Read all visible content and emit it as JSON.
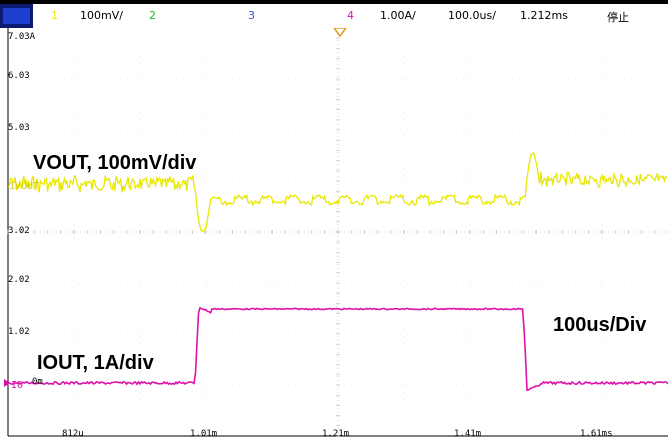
{
  "status_bar": {
    "ch1_number": "1",
    "ch1_scale": "100mV/",
    "ch2_number": "2",
    "ch3_number": "3",
    "ch4_number": "4",
    "ch4_scale": "1.00A/",
    "timebase": "100.0us/",
    "trigger_position": "1.212ms",
    "run_state": "停止",
    "colors": {
      "ch1": "#e8e800",
      "ch2": "#22bb22",
      "ch3": "#3355dd",
      "ch4": "#dd11aa"
    }
  },
  "y_scale_labels": [
    "7.03A",
    "6.03",
    "5.03",
    "3.02",
    "2.02",
    "1.02",
    "0m"
  ],
  "x_scale_labels": [
    "812u",
    "1.01m",
    "1.21m",
    "1.41m",
    "1.61ms"
  ],
  "channel_markers": {
    "vout": "1VOUT",
    "iout": "IO"
  },
  "annotations": {
    "vout": "VOUT, 100mV/div",
    "iout": "IOUT, 1A/div",
    "timebase": "100us/Div"
  },
  "icons": {
    "trigger_marker": "trigger-position-marker-icon",
    "stop": "acquisition-stop-icon"
  }
}
